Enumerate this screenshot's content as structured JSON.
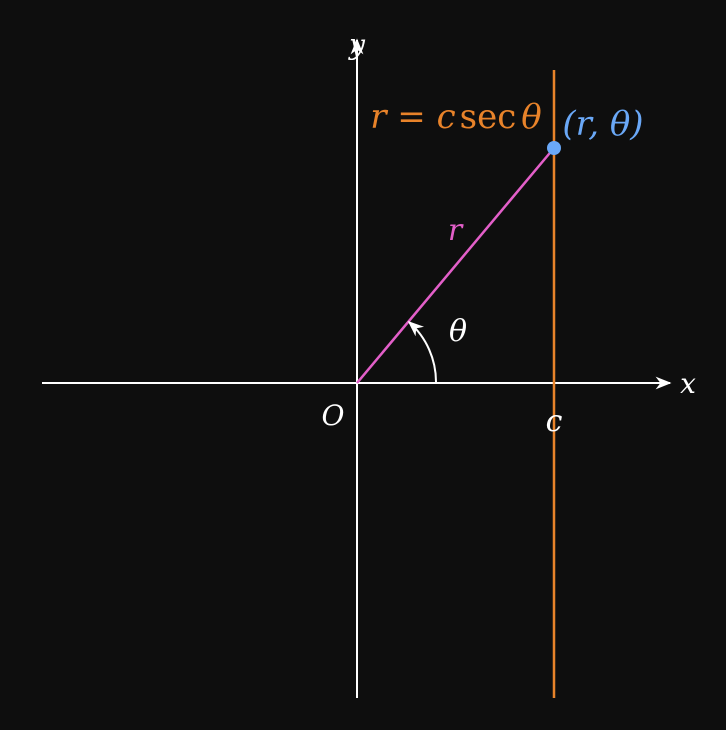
{
  "colors": {
    "background": "#0e0e0e",
    "axis": "#ffffff",
    "line": "#e8832a",
    "radius": "#e35fc9",
    "point": "#6aa8f7",
    "angle": "#ffffff"
  },
  "labels": {
    "x_axis": "x",
    "y_axis": "y",
    "origin": "O",
    "c_tick": "c",
    "radius": "r",
    "angle": "θ",
    "point": "(r, θ)",
    "equation": {
      "lhs": "r",
      "eq": " = ",
      "c": "c",
      "sec": "sec",
      "theta": "θ"
    }
  },
  "icons": {
    "x_arrow": "arrowhead-right-icon",
    "y_arrow": "arrowhead-up-icon",
    "angle_arrow": "arrowhead-icon"
  }
}
